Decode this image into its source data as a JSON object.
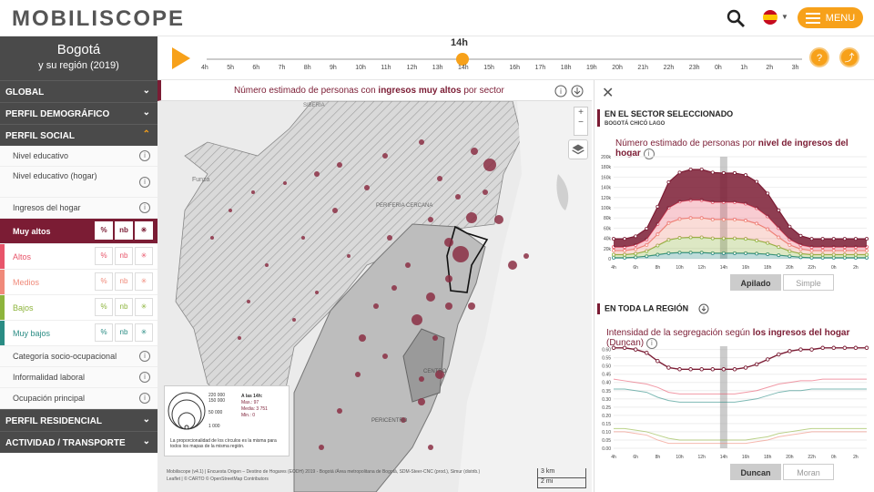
{
  "header": {
    "logo": "MOBILISCOPE",
    "menu_label": "MENU"
  },
  "sidebar": {
    "city": "Bogotá",
    "region": "y su región (2019)",
    "sections": {
      "global": "GLOBAL",
      "demografico": "PERFIL DEMOGRÁFICO",
      "social": "PERFIL SOCIAL",
      "residencial": "PERFIL RESIDENCIAL",
      "actividad": "ACTIVIDAD / TRANSPORTE"
    },
    "social_items": {
      "nivel_educativo": "Nivel educativo",
      "nivel_educativo_hogar": "Nivel educativo (hogar)",
      "ingresos_hogar": "Ingresos del hogar",
      "cat_socio": "Categoría socio-ocupacional",
      "informalidad": "Informalidad laboral",
      "ocupacion": "Ocupación principal"
    },
    "categories": [
      {
        "label": "Muy altos",
        "color": "#7b1c34"
      },
      {
        "label": "Altos",
        "color": "#e8556a"
      },
      {
        "label": "Medios",
        "color": "#f08a7a"
      },
      {
        "label": "Bajos",
        "color": "#8db43c"
      },
      {
        "label": "Muy bajos",
        "color": "#2a8c84"
      }
    ],
    "opts": {
      "pct": "%",
      "nb": "nb",
      "seg": "✳"
    }
  },
  "timeline": {
    "current": "14h",
    "hours": [
      "4h",
      "5h",
      "6h",
      "7h",
      "8h",
      "9h",
      "10h",
      "11h",
      "12h",
      "13h",
      "14h",
      "15h",
      "16h",
      "17h",
      "18h",
      "19h",
      "20h",
      "21h",
      "22h",
      "23h",
      "0h",
      "1h",
      "2h",
      "3h"
    ],
    "help": "?",
    "share": "⤴"
  },
  "map": {
    "title_pre": "Número estimado de personas con ",
    "title_bold": "ingresos muy altos",
    "title_post": " por sector",
    "places": {
      "siberia": "SIBERIA",
      "funza": "Funza",
      "periferia": "PERIFERIA CERCANA",
      "centro": "CENTRO",
      "pericentro": "PERICENTRO"
    },
    "legend": {
      "v220": "220 000",
      "v150": "150 000",
      "v50": "50 000",
      "v1": "1 000",
      "at": "A las 14h:",
      "max": "Max.: 97",
      "media": "Media: 3 751",
      "min": "Min.: 0",
      "note": "La proporcionalidad de los círculos es la misma para todos los mapas de la misma región."
    },
    "attribution1": "Mobiliscope (v4.1) | Encuesta Origen – Destino de Hogares (EODH) 2019 - Bogotá /Área metropolitana de Bogotá, SDM-Steer-CNC (prod.), Simur (distrib.)",
    "attribution2": "Leaflet | © CARTO © OpenStreetMap Contributors",
    "scale_km": "3 km",
    "scale_mi": "2 mi"
  },
  "sector_panel": {
    "heading": "EN EL SECTOR SELECCIONADO",
    "sector": "BOGOTÁ CHICÓ LAGO",
    "title_pre": "Número estimado de personas por ",
    "title_bold": "nivel de ingresos del hogar",
    "btn_on": "Apilado",
    "btn_off": "Simple"
  },
  "region_panel": {
    "heading": "EN TODA LA REGIÓN",
    "title_pre": "Intensidad de la segregación según ",
    "title_bold": "los ingresos del hogar",
    "title_post": " (Duncan)",
    "btn_on": "Duncan",
    "btn_off": "Moran"
  },
  "chart_data": [
    {
      "type": "area",
      "x": [
        "4h",
        "5h",
        "6h",
        "7h",
        "8h",
        "9h",
        "10h",
        "11h",
        "12h",
        "13h",
        "14h",
        "15h",
        "16h",
        "17h",
        "18h",
        "19h",
        "20h",
        "21h",
        "22h",
        "23h",
        "0h",
        "1h",
        "2h",
        "3h"
      ],
      "xticks": [
        "4h",
        "6h",
        "8h",
        "10h",
        "12h",
        "14h",
        "16h",
        "18h",
        "20h",
        "22h",
        "0h",
        "2h"
      ],
      "yticks": [
        "0",
        "20k",
        "40k",
        "60k",
        "80k",
        "100k",
        "120k",
        "140k",
        "160k",
        "180k",
        "200k"
      ],
      "ylim": [
        0,
        200000
      ],
      "stacked": true,
      "series": [
        {
          "name": "Muy bajos",
          "color": "#2a8c84",
          "values": [
            2000,
            2000,
            3000,
            5000,
            8000,
            11000,
            12000,
            12000,
            12000,
            11000,
            11000,
            11000,
            11000,
            10000,
            9000,
            7000,
            5000,
            3000,
            2000,
            2000,
            2000,
            2000,
            2000,
            2000
          ]
        },
        {
          "name": "Bajos",
          "color": "#8db43c",
          "values": [
            6000,
            6000,
            7000,
            10000,
            18000,
            26000,
            29000,
            30000,
            30000,
            29000,
            29000,
            29000,
            28000,
            26000,
            22000,
            16000,
            10000,
            7000,
            6000,
            6000,
            6000,
            6000,
            6000,
            6000
          ]
        },
        {
          "name": "Medios",
          "color": "#f08a7a",
          "values": [
            8000,
            8000,
            9000,
            12000,
            22000,
            33000,
            37000,
            38000,
            38000,
            37000,
            37000,
            37000,
            36000,
            33000,
            27000,
            19000,
            12000,
            9000,
            8000,
            8000,
            8000,
            8000,
            8000,
            8000
          ]
        },
        {
          "name": "Altos",
          "color": "#e8556a",
          "values": [
            7000,
            7000,
            8000,
            11000,
            20000,
            30000,
            34000,
            35000,
            35000,
            34000,
            34000,
            34000,
            33000,
            30000,
            25000,
            18000,
            11000,
            8000,
            7000,
            7000,
            7000,
            7000,
            7000,
            7000
          ]
        },
        {
          "name": "Muy altos",
          "color": "#7b1c34",
          "values": [
            16000,
            16000,
            17000,
            21000,
            34000,
            50000,
            57000,
            60000,
            60000,
            58000,
            57000,
            57000,
            56000,
            52000,
            45000,
            35000,
            25000,
            18000,
            16000,
            16000,
            16000,
            16000,
            16000,
            16000
          ]
        }
      ]
    },
    {
      "type": "line",
      "x": [
        "4h",
        "5h",
        "6h",
        "7h",
        "8h",
        "9h",
        "10h",
        "11h",
        "12h",
        "13h",
        "14h",
        "15h",
        "16h",
        "17h",
        "18h",
        "19h",
        "20h",
        "21h",
        "22h",
        "23h",
        "0h",
        "1h",
        "2h",
        "3h"
      ],
      "xticks": [
        "4h",
        "6h",
        "8h",
        "10h",
        "12h",
        "14h",
        "16h",
        "18h",
        "20h",
        "22h",
        "0h",
        "2h"
      ],
      "yticks": [
        "0.00",
        "0.05",
        "0.10",
        "0.15",
        "0.20",
        "0.25",
        "0.30",
        "0.35",
        "0.40",
        "0.45",
        "0.50",
        "0.55",
        "0.60"
      ],
      "ylim": [
        0,
        0.62
      ],
      "series": [
        {
          "name": "Muy altos",
          "color": "#7b1c34",
          "values": [
            0.61,
            0.61,
            0.6,
            0.58,
            0.53,
            0.49,
            0.48,
            0.48,
            0.48,
            0.48,
            0.48,
            0.48,
            0.49,
            0.51,
            0.54,
            0.57,
            0.59,
            0.6,
            0.6,
            0.61,
            0.61,
            0.61,
            0.61,
            0.61
          ]
        },
        {
          "name": "Altos",
          "color": "#e8556a",
          "values": [
            0.42,
            0.41,
            0.4,
            0.39,
            0.37,
            0.34,
            0.33,
            0.33,
            0.33,
            0.33,
            0.33,
            0.33,
            0.34,
            0.35,
            0.37,
            0.39,
            0.4,
            0.41,
            0.41,
            0.42,
            0.42,
            0.42,
            0.42,
            0.42
          ]
        },
        {
          "name": "Muy bajos",
          "color": "#2a8c84",
          "values": [
            0.36,
            0.36,
            0.35,
            0.34,
            0.31,
            0.29,
            0.28,
            0.28,
            0.28,
            0.28,
            0.28,
            0.28,
            0.29,
            0.3,
            0.32,
            0.34,
            0.35,
            0.35,
            0.36,
            0.36,
            0.36,
            0.36,
            0.36,
            0.36
          ]
        },
        {
          "name": "Bajos",
          "color": "#8db43c",
          "values": [
            0.12,
            0.12,
            0.11,
            0.1,
            0.08,
            0.06,
            0.05,
            0.05,
            0.05,
            0.05,
            0.05,
            0.05,
            0.05,
            0.06,
            0.07,
            0.09,
            0.1,
            0.11,
            0.12,
            0.12,
            0.12,
            0.12,
            0.12,
            0.12
          ]
        },
        {
          "name": "Medios",
          "color": "#f08a7a",
          "values": [
            0.1,
            0.1,
            0.09,
            0.08,
            0.05,
            0.03,
            0.03,
            0.03,
            0.03,
            0.03,
            0.03,
            0.03,
            0.03,
            0.04,
            0.05,
            0.07,
            0.08,
            0.09,
            0.1,
            0.1,
            0.1,
            0.1,
            0.1,
            0.1
          ]
        }
      ]
    }
  ]
}
